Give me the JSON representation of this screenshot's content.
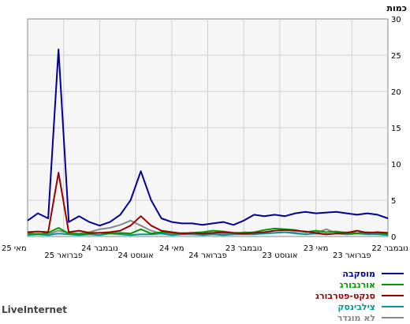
{
  "brand": "LiveInternet",
  "chart_data": {
    "type": "line",
    "unit_label": "כמות",
    "ylim": [
      0,
      30
    ],
    "y_ticks": [
      0,
      5,
      10,
      15,
      20,
      25,
      30
    ],
    "x_tick_labels": [
      "נובמבר 22",
      "פברואר 23",
      "מאי 23",
      "אוגוסט 23",
      "נובמבר 23",
      "פברואר 24",
      "מאי 24",
      "אוגוסט 24",
      "נובמבר 24",
      "פברואר 25",
      "מאי 25"
    ],
    "grid": true,
    "legend_placement": "bottom-right",
    "series": [
      {
        "name": "מוסקבה",
        "color": "#000099",
        "values": [
          2.5,
          3.0,
          3.2,
          3.0,
          3.2,
          3.4,
          3.3,
          3.2,
          3.4,
          3.2,
          2.8,
          3.0,
          2.8,
          3.0,
          2.2,
          1.6,
          2.0,
          1.8,
          1.6,
          1.8,
          1.8,
          2.0,
          2.5,
          5.0,
          9.0,
          5.0,
          3.0,
          2.0,
          1.5,
          2.0,
          2.8,
          2.0,
          25.8,
          2.5,
          3.2,
          2.2
        ]
      },
      {
        "name": "אורנבורג",
        "color": "#009900",
        "values": [
          0.4,
          0.5,
          0.6,
          0.4,
          0.5,
          0.7,
          0.6,
          0.8,
          0.6,
          0.9,
          1.0,
          1.1,
          0.9,
          0.6,
          0.5,
          0.5,
          0.7,
          0.8,
          0.6,
          0.5,
          0.4,
          0.5,
          0.6,
          0.4,
          1.0,
          0.4,
          0.5,
          0.4,
          0.5,
          0.4,
          0.3,
          0.4,
          1.2,
          0.5,
          0.3,
          0.5
        ]
      },
      {
        "name": "סנקט-פטרבורג",
        "color": "#990000",
        "values": [
          0.5,
          0.6,
          0.5,
          0.8,
          0.5,
          0.4,
          0.3,
          0.5,
          0.7,
          0.8,
          0.9,
          0.8,
          0.6,
          0.5,
          0.4,
          0.5,
          0.6,
          0.5,
          0.4,
          0.5,
          0.4,
          0.6,
          0.8,
          1.5,
          2.8,
          1.5,
          0.8,
          0.6,
          0.5,
          0.5,
          0.8,
          0.6,
          8.8,
          0.6,
          0.7,
          0.6
        ]
      },
      {
        "name": "צילבינסק",
        "color": "#009999",
        "values": [
          0.2,
          0.3,
          0.3,
          0.4,
          0.3,
          0.4,
          0.3,
          0.4,
          0.3,
          0.5,
          0.6,
          0.5,
          0.4,
          0.3,
          0.3,
          0.3,
          0.2,
          0.3,
          0.2,
          0.3,
          0.3,
          0.2,
          0.4,
          0.3,
          0.3,
          0.2,
          0.3,
          0.4,
          0.2,
          0.3,
          0.2,
          0.3,
          0.4,
          0.2,
          0.3,
          0.2
        ]
      },
      {
        "name": "לא מוגדר",
        "color": "#888888",
        "values": [
          0.3,
          0.4,
          0.5,
          0.5,
          0.6,
          0.5,
          1.0,
          0.5,
          0.3,
          0.4,
          0.6,
          0.5,
          0.4,
          0.5,
          0.6,
          0.3,
          0.4,
          0.5,
          0.3,
          0.4,
          0.5,
          0.3,
          0.4,
          0.8,
          1.5,
          2.2,
          1.6,
          1.2,
          1.0,
          0.6,
          0.4,
          0.5,
          0.8,
          0.3,
          0.4,
          0.3
        ]
      }
    ]
  }
}
